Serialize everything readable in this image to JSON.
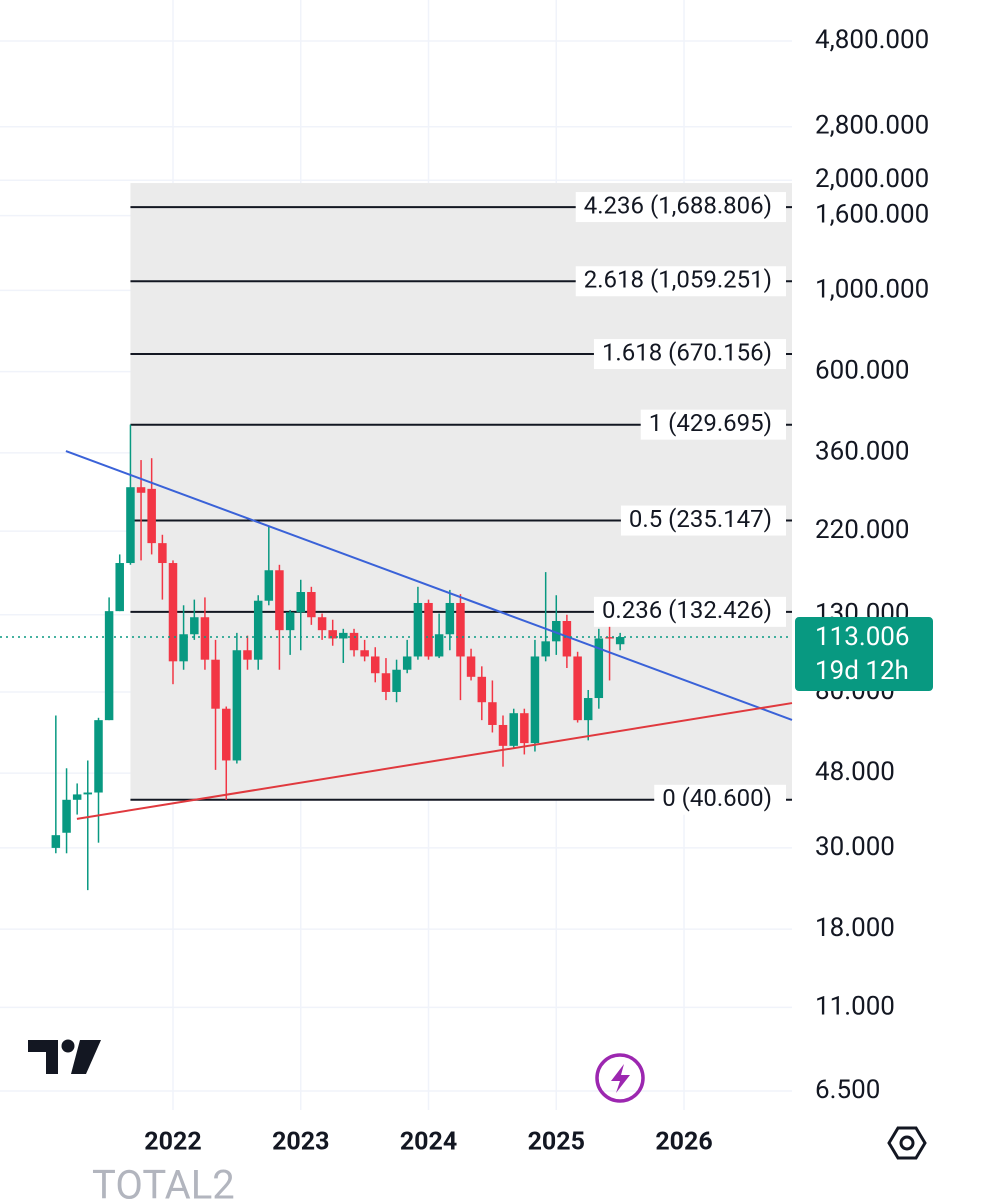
{
  "chart_data": {
    "type": "candlestick",
    "symbol": "TOTAL2",
    "log_scale": true,
    "grid": true,
    "up_color": "#089981",
    "down_color": "#f23645",
    "xlim": [
      2020.646,
      2026.845
    ],
    "ylim": [
      5.77,
      6212
    ],
    "xticks": [
      2022,
      2023,
      2024,
      2025,
      2026
    ],
    "yticks": [
      {
        "value": 4800,
        "label": "4,800.000"
      },
      {
        "value": 2800,
        "label": "2,800.000"
      },
      {
        "value": 2000,
        "label": "2,000.000"
      },
      {
        "value": 1600,
        "label": "1,600.000"
      },
      {
        "value": 1000,
        "label": "1,000.000"
      },
      {
        "value": 600,
        "label": "600.000"
      },
      {
        "value": 360,
        "label": "360.000"
      },
      {
        "value": 220,
        "label": "220.000"
      },
      {
        "value": 130,
        "label": "130.000"
      },
      {
        "value": 80,
        "label": "80.000"
      },
      {
        "value": 48,
        "label": "48.000"
      },
      {
        "value": 30,
        "label": "30.000"
      },
      {
        "value": 18,
        "label": "18.000"
      },
      {
        "value": 11,
        "label": "11.000"
      },
      {
        "value": 6.5,
        "label": "6.500"
      }
    ],
    "x": [
      2021.083,
      2021.167,
      2021.25,
      2021.333,
      2021.417,
      2021.5,
      2021.583,
      2021.667,
      2021.75,
      2021.833,
      2021.917,
      2022.0,
      2022.083,
      2022.167,
      2022.25,
      2022.333,
      2022.417,
      2022.5,
      2022.583,
      2022.667,
      2022.75,
      2022.833,
      2022.917,
      2023.0,
      2023.083,
      2023.167,
      2023.25,
      2023.333,
      2023.417,
      2023.5,
      2023.583,
      2023.667,
      2023.75,
      2023.833,
      2023.917,
      2024.0,
      2024.083,
      2024.167,
      2024.25,
      2024.333,
      2024.417,
      2024.5,
      2024.583,
      2024.667,
      2024.75,
      2024.833,
      2024.917,
      2025.0,
      2025.083,
      2025.167,
      2025.25,
      2025.333,
      2025.417,
      2025.5
    ],
    "open": [
      30,
      33,
      40.6,
      42,
      42.5,
      67,
      133,
      180,
      290,
      287,
      204,
      180,
      97,
      115,
      128,
      98,
      72,
      52,
      104,
      98,
      142,
      172,
      118,
      132,
      150,
      128,
      118,
      112,
      116,
      104,
      100,
      90,
      80,
      92,
      100,
      140,
      100,
      115,
      140,
      100,
      88,
      75,
      65,
      57,
      70,
      58,
      100,
      110,
      125,
      100,
      67,
      77,
      113,
      108
    ],
    "high": [
      69,
      49.5,
      45,
      52,
      68,
      145,
      190,
      430,
      344,
      348,
      215,
      183,
      138,
      143,
      145,
      111,
      73,
      116,
      114,
      147,
      228,
      178,
      134,
      162,
      155,
      131,
      126,
      119,
      119,
      111,
      106,
      99,
      98,
      111,
      155,
      143,
      131,
      152,
      148,
      105,
      94,
      86,
      69,
      72,
      72,
      111,
      170,
      147,
      130,
      103,
      81,
      119,
      124,
      116
    ],
    "low": [
      29,
      29,
      37,
      23,
      31,
      67,
      133,
      178,
      183,
      190,
      143,
      84,
      92,
      111,
      92,
      49,
      40.6,
      51,
      92,
      92,
      138,
      92,
      101,
      104,
      122,
      111,
      107,
      96,
      100,
      97,
      85,
      76,
      75,
      90,
      98,
      98,
      99,
      104,
      76,
      86,
      67,
      62,
      50,
      56,
      54,
      55,
      97,
      101,
      93,
      66,
      59,
      72,
      86,
      104
    ],
    "close": [
      32.5,
      40.6,
      42,
      42.5,
      67,
      133,
      180,
      290,
      280,
      204,
      180,
      97,
      115,
      128,
      98,
      72,
      52,
      104,
      98,
      142,
      172,
      118,
      132,
      150,
      128,
      118,
      112,
      116,
      104,
      100,
      90,
      80,
      92,
      100,
      140,
      100,
      115,
      140,
      100,
      88,
      75,
      65,
      57,
      70,
      58,
      100,
      110,
      125,
      100,
      67,
      77,
      112,
      112,
      113.006
    ],
    "fib_levels": [
      {
        "label": "4.236 (1,688.806)",
        "value": 1688.806
      },
      {
        "label": "2.618 (1,059.251)",
        "value": 1059.251
      },
      {
        "label": "1.618 (670.156)",
        "value": 670.156
      },
      {
        "label": "1 (429.695)",
        "value": 429.695
      },
      {
        "label": "0.5 (235.147)",
        "value": 235.147
      },
      {
        "label": "0.236 (132.426)",
        "value": 132.426
      },
      {
        "label": "0 (40.600)",
        "value": 40.6
      }
    ],
    "trendlines": [
      {
        "color": "#3a62d8",
        "x": [
          2021.162,
          2026.845
        ],
        "values": [
          364,
          67.1
        ]
      },
      {
        "color": "#e0393e",
        "x": [
          2021.248,
          2026.845
        ],
        "values": [
          36,
          74.6
        ]
      }
    ],
    "current_price": 113.006,
    "countdown": "19d 12h"
  }
}
